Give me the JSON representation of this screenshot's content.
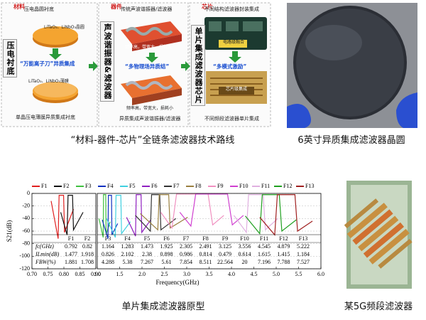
{
  "roadmap": {
    "caption": "“材料-器件-芯片”全链条滤波器技术路线",
    "columns": [
      {
        "tag": "材料",
        "side": "压电衬底",
        "top": "压电晶圆衬底",
        "top_sub": "LiTaO₃、LiNbO₃晶圆",
        "arrow": "“万能离子刀”异质集成",
        "bottom_sub": "LiTaO₃、LiNbO₃薄膜",
        "bottom": "单晶压电薄膜异质集成衬底"
      },
      {
        "tag": "器件",
        "side": "声波谐振器&滤波器",
        "top": "传统声波谐振器/滤波器",
        "top_sub": "频率高，带宽大，损耗大",
        "arrow": "“多物理场异质结”",
        "bottom_sub": "频率高，带宽大，损耗小",
        "bottom": "异质集成声波谐振器/滤波器"
      },
      {
        "tag": "芯片",
        "side": "单片集成滤波器芯片",
        "top": "不同结构滤波器封装集成",
        "top_sub": "电路级融合",
        "arrow": "“多模式激励”",
        "bottom_sub": "芯片级集成",
        "bottom": "不同频段滤波器单片集成"
      }
    ]
  },
  "wafer": {
    "caption": "6英寸异质集成滤波器晶圆"
  },
  "chip": {
    "caption": "某5G频段滤波器"
  },
  "chart_caption": "单片集成滤波器原型",
  "chart_data": [
    {
      "type": "line",
      "ylabel": "S21(dB)",
      "ylim": [
        -120,
        0
      ],
      "yticks": [
        0,
        -20,
        -40,
        -60,
        -80,
        -100,
        -120
      ],
      "grid": true,
      "xlim": [
        0.7,
        0.9
      ],
      "xticks": [
        {
          "value": 0.7,
          "label": "0.70"
        },
        0.75,
        {
          "value": 0.8,
          "label": "0.80"
        },
        0.85,
        {
          "value": 0.9,
          "label": "0.90"
        }
      ],
      "table_rows": [
        "fc(GHz)",
        "ILmin(dB)",
        "FBW(%)"
      ],
      "series": [
        {
          "name": "F1",
          "color": "#e02020",
          "x": [
            0.76,
            0.782,
            0.785,
            0.799,
            0.802,
            0.83
          ],
          "values": [
            -12,
            -72,
            -3,
            -3,
            -62,
            -25
          ],
          "table": [
            0.792,
            1.477,
            1.881
          ]
        },
        {
          "name": "F2",
          "color": "#111111",
          "x": [
            0.79,
            0.81,
            0.813,
            0.827,
            0.83,
            0.86
          ],
          "values": [
            -30,
            -66,
            -3,
            -3,
            -58,
            -30
          ],
          "table": [
            0.82,
            1.918,
            1.708
          ]
        }
      ]
    },
    {
      "type": "line",
      "xlabel": "Frequency(GHz)",
      "ylim": [
        -120,
        0
      ],
      "yticks": [
        0,
        -20,
        -40,
        -60,
        -80,
        -100,
        -120
      ],
      "grid": true,
      "xlim": [
        1,
        6
      ],
      "xticks": [
        {
          "value": 1,
          "label": "1.0"
        },
        1.5,
        {
          "value": 2,
          "label": "2.0"
        },
        2.5,
        {
          "value": 3,
          "label": "3.0"
        },
        3.5,
        {
          "value": 4,
          "label": "4.0"
        },
        4.5,
        {
          "value": 5,
          "label": "5.0"
        },
        5.5,
        {
          "value": 6,
          "label": "6.0"
        }
      ],
      "series": [
        {
          "name": "F3",
          "color": "#40c040",
          "x": [
            1.039,
            1.132,
            1.139,
            1.189,
            1.197,
            1.289
          ],
          "values": [
            -40,
            -70,
            -2,
            -2,
            -65,
            -45
          ],
          "table": [
            1.164,
            0.826,
            4.288
          ]
        },
        {
          "name": "F4",
          "color": "#1030c0",
          "x": [
            1.111,
            1.239,
            1.249,
            1.318,
            1.328,
            1.456
          ],
          "values": [
            -42,
            -72,
            -3,
            -3,
            -66,
            -48
          ],
          "table": [
            1.283,
            2.102,
            5.38
          ]
        },
        {
          "name": "F5",
          "color": "#40d0e0",
          "x": [
            1.206,
            1.404,
            1.42,
            1.527,
            1.543,
            1.741
          ],
          "values": [
            -40,
            -70,
            -3,
            -3,
            -64,
            -45
          ],
          "table": [
            1.473,
            2.38,
            7.267
          ]
        },
        {
          "name": "F6",
          "color": "#9020c0",
          "x": [
            1.655,
            1.855,
            1.871,
            1.979,
            1.995,
            2.195
          ],
          "values": [
            -38,
            -68,
            -2,
            -2,
            -62,
            -42
          ],
          "table": [
            1.925,
            0.898,
            5.61
          ]
        },
        {
          "name": "F7",
          "color": "#333333",
          "x": [
            1.852,
            2.187,
            2.214,
            2.396,
            2.423,
            2.758
          ],
          "values": [
            -35,
            -60,
            -2,
            -2,
            -58,
            -40
          ],
          "table": [
            2.305,
            0.986,
            7.854
          ]
        },
        {
          "name": "F8",
          "color": "#9a8040",
          "x": [
            1.961,
            2.353,
            2.385,
            2.597,
            2.629,
            3.021
          ],
          "values": [
            -32,
            -58,
            -2,
            -2,
            -55,
            -38
          ],
          "table": [
            2.491,
            0.814,
            8.511
          ]
        },
        {
          "name": "F9",
          "color": "#f090c0",
          "x": [
            2.42,
            2.67,
            2.772,
            3.478,
            3.58,
            3.83
          ],
          "values": [
            -30,
            -55,
            -1,
            -1,
            -50,
            -35
          ],
          "table": [
            3.125,
            0.479,
            22.564
          ]
        },
        {
          "name": "F10",
          "color": "#d040d0",
          "x": [
            2.845,
            3.093,
            3.2,
            3.912,
            4.019,
            4.268
          ],
          "values": [
            -30,
            -52,
            -1,
            -1,
            -50,
            -35
          ],
          "table": [
            3.556,
            0.614,
            20
          ]
        },
        {
          "name": "F11",
          "color": "#e0b0e0",
          "x": [
            4.055,
            4.333,
            4.382,
            4.709,
            4.758,
            5.036
          ],
          "values": [
            -35,
            -62,
            -2,
            -2,
            -58,
            -40
          ],
          "table": [
            4.545,
            1.615,
            7.196
          ]
        },
        {
          "name": "F12",
          "color": "#20a020",
          "x": [
            4.309,
            4.632,
            4.689,
            5.069,
            5.126,
            5.449
          ],
          "values": [
            -36,
            -64,
            -2,
            -2,
            -60,
            -42
          ],
          "table": [
            4.879,
            1.415,
            7.788
          ]
        },
        {
          "name": "F13",
          "color": "#a02020",
          "x": [
            4.633,
            4.967,
            5.026,
            5.419,
            5.478,
            5.811
          ],
          "values": [
            -38,
            -66,
            -2,
            -2,
            -60,
            -44
          ],
          "table": [
            5.222,
            1.184,
            7.527
          ]
        }
      ]
    }
  ]
}
